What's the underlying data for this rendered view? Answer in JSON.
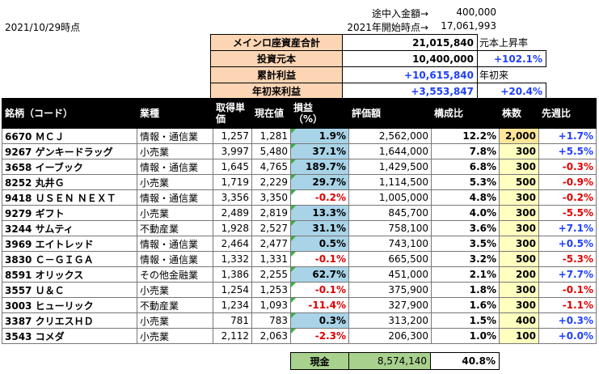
{
  "date": "2021/10/29時点",
  "top": {
    "deposit_label": "途中入金額→",
    "deposit_value": "400,000",
    "start_label": "2021年開始時点→",
    "start_value": "17,061,993"
  },
  "summary": {
    "rows": [
      {
        "label": "メインロ座資産合計",
        "value": "21,015,840",
        "side": "元本上昇率",
        "side_is_pct": false
      },
      {
        "label": "投資元本",
        "value": "10,400,000",
        "side": "+102.1%",
        "side_is_pct": true
      },
      {
        "label": "累計利益",
        "value": "+10,615,840",
        "side": "年初来",
        "side_is_pct": false,
        "value_blue": true
      },
      {
        "label": "年初来利益",
        "value": "+3,553,847",
        "side": "+20.4%",
        "side_is_pct": true,
        "value_blue": true
      }
    ]
  },
  "table": {
    "headers": [
      "銘柄（コード）",
      "業種",
      "取得単価",
      "現在値",
      "損益\n（%）",
      "評価額",
      "構成比",
      "株数",
      "先週比"
    ],
    "rows": [
      {
        "name": "6670 ＭＣＪ",
        "sector": "情報・通信業",
        "cost": "1,257",
        "price": "1,281",
        "pl": "1.9%",
        "value": "2,562,000",
        "ratio": "12.2%",
        "shares": "2,000",
        "week": "+1.7%"
      },
      {
        "name": "9267 ゲンキードラッグ",
        "sector": "小売業",
        "cost": "3,997",
        "price": "5,480",
        "pl": "37.1%",
        "value": "1,644,000",
        "ratio": "7.8%",
        "shares": "300",
        "week": "+5.5%"
      },
      {
        "name": "3658 イーブック",
        "sector": "情報・通信業",
        "cost": "1,645",
        "price": "4,765",
        "pl": "189.7%",
        "value": "1,429,500",
        "ratio": "6.8%",
        "shares": "300",
        "week": "-0.3%"
      },
      {
        "name": "8252 丸井Ｇ",
        "sector": "小売業",
        "cost": "1,719",
        "price": "2,229",
        "pl": "29.7%",
        "value": "1,114,500",
        "ratio": "5.3%",
        "shares": "500",
        "week": "-0.9%"
      },
      {
        "name": "9418 ＵＳＥＮ ＮＥＸＴ",
        "sector": "情報・通信業",
        "cost": "3,356",
        "price": "3,350",
        "pl": "-0.2%",
        "value": "1,005,000",
        "ratio": "4.8%",
        "shares": "300",
        "week": "-0.2%"
      },
      {
        "name": "9279 ギフト",
        "sector": "小売業",
        "cost": "2,489",
        "price": "2,819",
        "pl": "13.3%",
        "value": "845,700",
        "ratio": "4.0%",
        "shares": "300",
        "week": "-5.5%"
      },
      {
        "name": "3244 サムティ",
        "sector": "不動産業",
        "cost": "1,928",
        "price": "2,527",
        "pl": "31.1%",
        "value": "758,100",
        "ratio": "3.6%",
        "shares": "300",
        "week": "+7.1%"
      },
      {
        "name": "3969 エイトレッド",
        "sector": "情報・通信業",
        "cost": "2,464",
        "price": "2,477",
        "pl": "0.5%",
        "value": "743,100",
        "ratio": "3.5%",
        "shares": "300",
        "week": "+0.5%"
      },
      {
        "name": "3830 Ｃ－ＧＩＧＡ",
        "sector": "情報・通信業",
        "cost": "1,332",
        "price": "1,331",
        "pl": "-0.1%",
        "value": "665,500",
        "ratio": "3.2%",
        "shares": "500",
        "week": "-5.3%"
      },
      {
        "name": "8591 オリックス",
        "sector": "その他金融業",
        "cost": "1,386",
        "price": "2,255",
        "pl": "62.7%",
        "value": "451,000",
        "ratio": "2.1%",
        "shares": "200",
        "week": "+7.7%"
      },
      {
        "name": "3557 Ｕ＆Ｃ",
        "sector": "小売業",
        "cost": "1,254",
        "price": "1,253",
        "pl": "-0.1%",
        "value": "375,900",
        "ratio": "1.8%",
        "shares": "300",
        "week": "-0.1%"
      },
      {
        "name": "3003 ヒューリック",
        "sector": "不動産業",
        "cost": "1,234",
        "price": "1,093",
        "pl": "-11.4%",
        "value": "327,900",
        "ratio": "1.6%",
        "shares": "300",
        "week": "-1.1%"
      },
      {
        "name": "3387 クリエスＨＤ",
        "sector": "小売業",
        "cost": "781",
        "price": "783",
        "pl": "0.3%",
        "value": "313,200",
        "ratio": "1.5%",
        "shares": "400",
        "week": "+0.3%"
      },
      {
        "name": "3543 コメダ",
        "sector": "小売業",
        "cost": "2,112",
        "price": "2,063",
        "pl": "-2.3%",
        "value": "206,300",
        "ratio": "1.0%",
        "shares": "100",
        "week": "+0.0%"
      }
    ]
  },
  "cash": {
    "label": "現金",
    "value": "8,574,140",
    "ratio": "40.8%"
  }
}
